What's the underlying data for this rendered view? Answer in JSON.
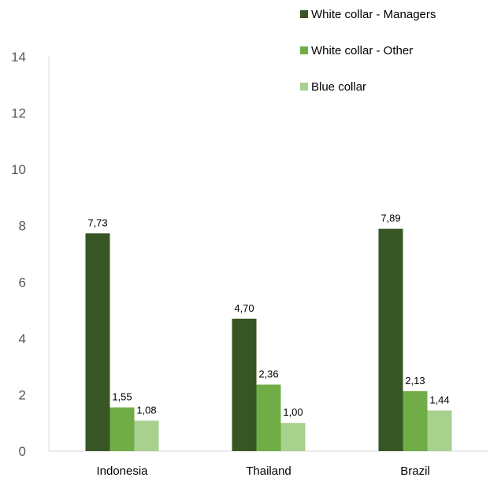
{
  "chart_data": {
    "type": "bar",
    "categories": [
      "Indonesia",
      "Thailand",
      "Brazil"
    ],
    "series": [
      {
        "name": "White collar - Managers",
        "color": "#375623",
        "values": [
          7.73,
          4.7,
          7.89
        ],
        "labels": [
          "7,73",
          "4,70",
          "7,89"
        ]
      },
      {
        "name": "White collar - Other",
        "color": "#70AD47",
        "values": [
          1.55,
          2.36,
          2.13
        ],
        "labels": [
          "1,55",
          "2,36",
          "2,13"
        ]
      },
      {
        "name": "Blue collar",
        "color": "#A9D18E",
        "values": [
          1.08,
          1.0,
          1.44
        ],
        "labels": [
          "1,08",
          "1,00",
          "1,44"
        ]
      }
    ],
    "ylim": [
      0,
      14
    ],
    "yticks": [
      "0",
      "2",
      "4",
      "6",
      "8",
      "10",
      "12",
      "14"
    ],
    "grid": false,
    "legend_position": "top-right"
  }
}
